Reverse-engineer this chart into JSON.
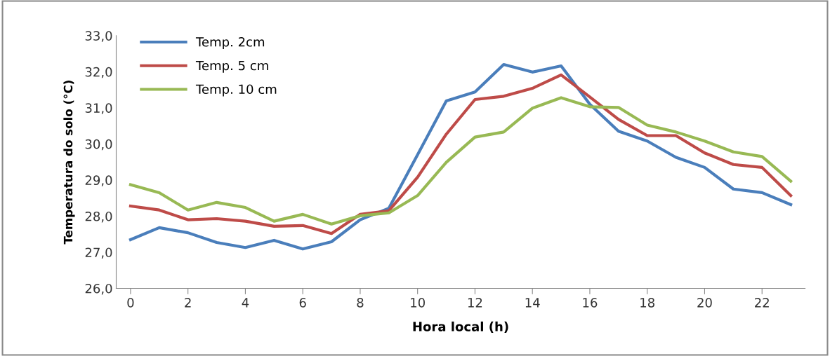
{
  "chart_data": {
    "type": "line",
    "xlabel": "Hora local (h)",
    "ylabel": "Temperatura do solo (°C)",
    "x": [
      0,
      1,
      2,
      3,
      4,
      5,
      6,
      7,
      8,
      9,
      10,
      11,
      12,
      13,
      14,
      15,
      16,
      17,
      18,
      19,
      20,
      21,
      22,
      23
    ],
    "series": [
      {
        "name": "Temp. 2cm",
        "color": "#4a7ebb",
        "values": [
          27.35,
          27.68,
          27.54,
          27.27,
          27.13,
          27.33,
          27.09,
          27.29,
          27.9,
          28.22,
          29.7,
          31.19,
          31.44,
          32.2,
          31.99,
          32.16,
          31.1,
          30.35,
          30.08,
          29.63,
          29.35,
          28.75,
          28.65,
          28.32
        ]
      },
      {
        "name": "Temp. 5 cm",
        "color": "#be4b48",
        "values": [
          28.28,
          28.17,
          27.9,
          27.93,
          27.86,
          27.72,
          27.74,
          27.52,
          28.05,
          28.15,
          29.08,
          30.27,
          31.23,
          31.32,
          31.54,
          31.91,
          31.3,
          30.68,
          30.23,
          30.23,
          29.75,
          29.43,
          29.35,
          28.57
        ]
      },
      {
        "name": "Temp. 10 cm",
        "color": "#98b954",
        "values": [
          28.87,
          28.65,
          28.17,
          28.38,
          28.24,
          27.86,
          28.05,
          27.78,
          28.01,
          28.09,
          28.57,
          29.49,
          30.19,
          30.33,
          30.99,
          31.28,
          31.03,
          31.01,
          30.52,
          30.33,
          30.08,
          29.78,
          29.65,
          28.97
        ]
      }
    ],
    "xlim": [
      -0.5,
      23.5
    ],
    "xticks": [
      0,
      2,
      4,
      6,
      8,
      10,
      12,
      14,
      16,
      18,
      20,
      22
    ],
    "ylim": [
      26,
      33
    ],
    "yticks": [
      {
        "value": 26,
        "label": "26,0"
      },
      {
        "value": 27,
        "label": "27,0"
      },
      {
        "value": 28,
        "label": "28,0"
      },
      {
        "value": 29,
        "label": "29,0"
      },
      {
        "value": 30,
        "label": "30,0"
      },
      {
        "value": 31,
        "label": "31,0"
      },
      {
        "value": 32,
        "label": "32,0"
      },
      {
        "value": 33,
        "label": "33,0"
      }
    ],
    "legend": "top left",
    "grid": false,
    "marker": "none",
    "line_style": "solid"
  }
}
